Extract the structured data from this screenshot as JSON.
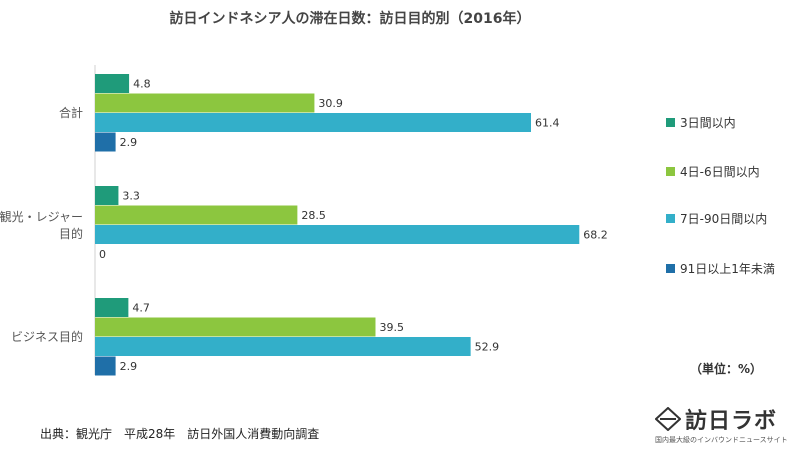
{
  "chart_data": {
    "type": "bar",
    "orientation": "horizontal",
    "title": "訪日インドネシア人の滞在日数：訪日目的別（2016年）",
    "categories": [
      "合計",
      "観光・レジャー目的",
      "ビジネス目的"
    ],
    "category_lines": [
      [
        "合計"
      ],
      [
        "観光・レジャー",
        "目的"
      ],
      [
        "ビジネス目的"
      ]
    ],
    "series": [
      {
        "name": "3日間以内",
        "color": "#1f9b7a",
        "values": [
          4.8,
          3.3,
          4.7
        ]
      },
      {
        "name": "4日-6日間以内",
        "color": "#8cc63f",
        "values": [
          30.9,
          28.5,
          39.5
        ]
      },
      {
        "name": "7日-90日間以内",
        "color": "#33afc9",
        "values": [
          61.4,
          68.2,
          52.9
        ]
      },
      {
        "name": "91日以上1年未満",
        "color": "#1f6fa8",
        "values": [
          2.9,
          0,
          2.9
        ]
      }
    ],
    "xlim": [
      0,
      70
    ],
    "grid": false,
    "legend_position": "right"
  },
  "unit_note": "（単位：%）",
  "source_note": "出典：観光庁　平成28年　訪日外国人消費動向調査",
  "brand": {
    "name": "訪日ラボ",
    "tagline": "国内最大級のインバウンドニュースサイト"
  }
}
